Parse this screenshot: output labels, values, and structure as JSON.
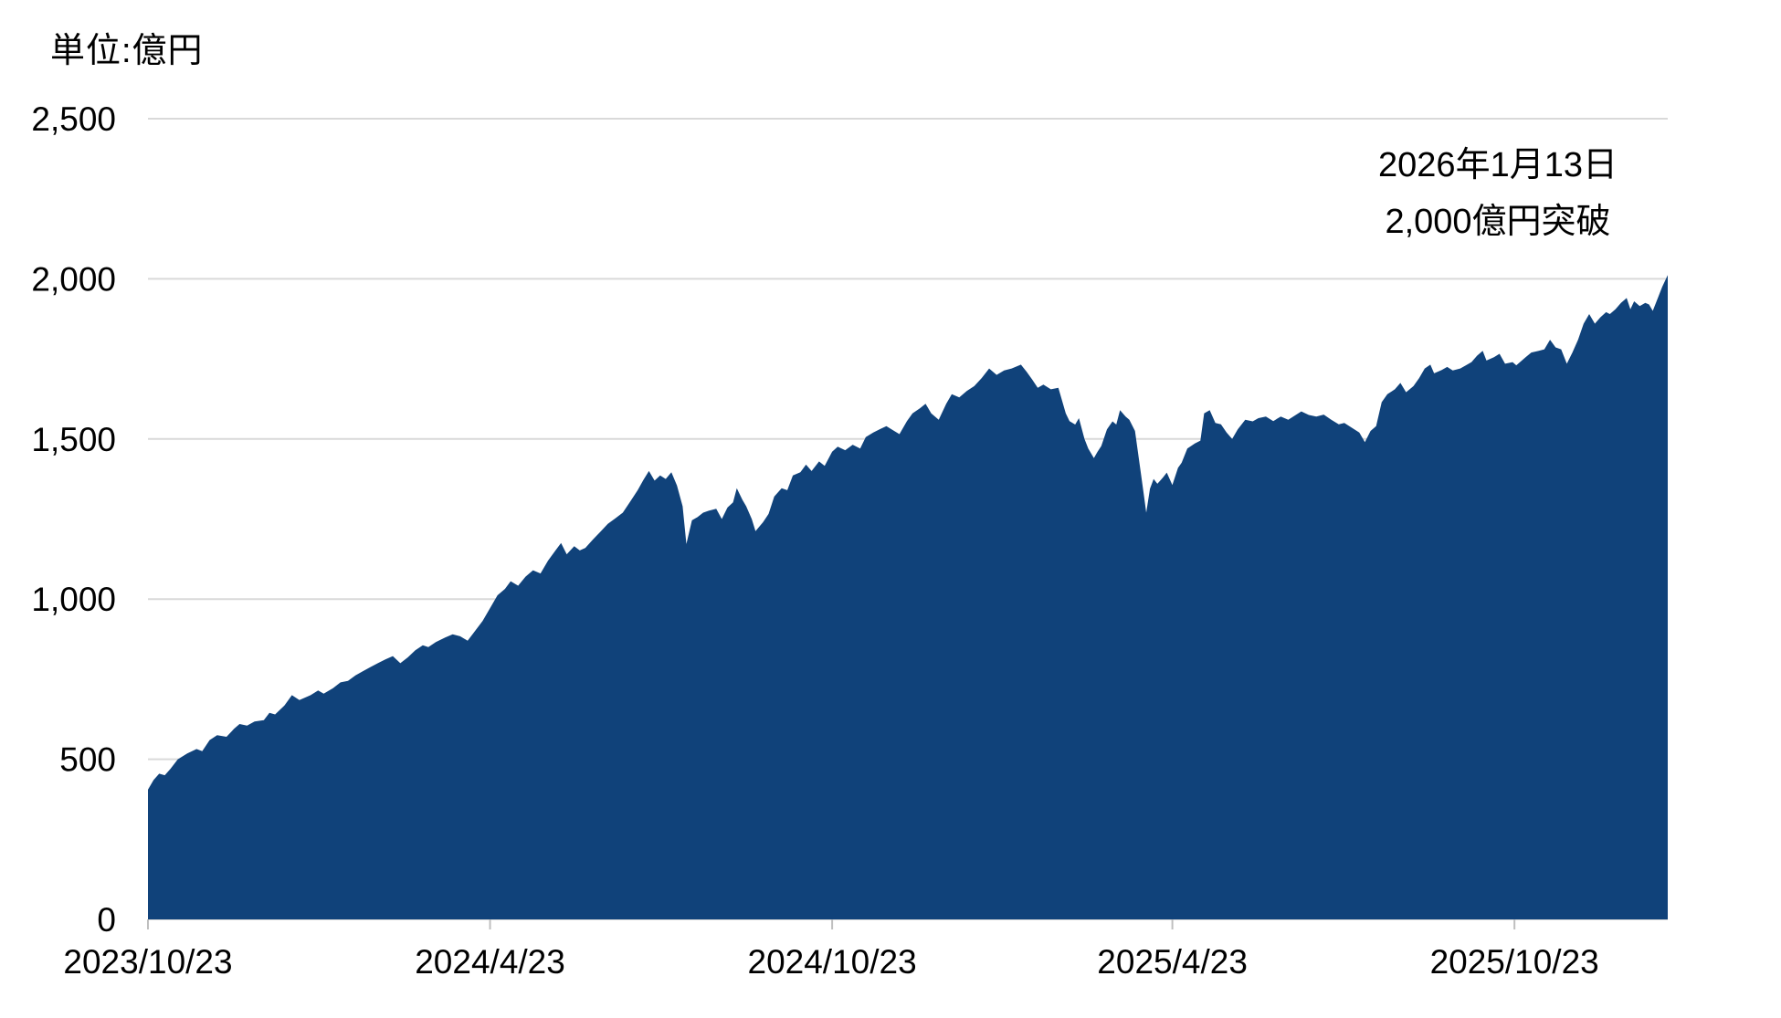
{
  "header": {
    "unit_label": "単位:億円"
  },
  "annotation": {
    "line1": "2026年1月13日",
    "line2": "2,000億円突破"
  },
  "colors": {
    "area_fill": "#10427A",
    "gridline": "#D9D9D9",
    "axis_tick": "#BFBFBF",
    "text": "#000000",
    "background": "#FFFFFF"
  },
  "chart_data": {
    "type": "area",
    "title": "単位:億円",
    "unit_label": "単位:億円",
    "annotation_lines": [
      "2026年1月13日",
      "2,000億円突破"
    ],
    "grid": "horizontal-only",
    "legend": "none",
    "y_axis": {
      "ticks": [
        0,
        500,
        1000,
        1500,
        2000,
        2500
      ],
      "tick_labels": [
        "0",
        "500",
        "1,000",
        "1,500",
        "2,000",
        "2,500"
      ],
      "ylim": [
        0,
        2500
      ]
    },
    "x_axis": {
      "tick_labels": [
        "2023/10/23",
        "2024/4/23",
        "2024/10/23",
        "2025/4/23",
        "2025/10/23"
      ],
      "tick_days": [
        0,
        183,
        366,
        548,
        731
      ],
      "total_days": 813,
      "end_date_label": "2026年1月13日"
    },
    "final_value": 2012,
    "points": [
      [
        0,
        405
      ],
      [
        3,
        435
      ],
      [
        6,
        455
      ],
      [
        9,
        450
      ],
      [
        12,
        470
      ],
      [
        16,
        500
      ],
      [
        21,
        518
      ],
      [
        26,
        532
      ],
      [
        29,
        525
      ],
      [
        33,
        560
      ],
      [
        37,
        575
      ],
      [
        42,
        570
      ],
      [
        46,
        595
      ],
      [
        49,
        610
      ],
      [
        53,
        605
      ],
      [
        57,
        618
      ],
      [
        62,
        622
      ],
      [
        65,
        645
      ],
      [
        68,
        640
      ],
      [
        73,
        668
      ],
      [
        77,
        700
      ],
      [
        81,
        685
      ],
      [
        87,
        700
      ],
      [
        91,
        715
      ],
      [
        94,
        705
      ],
      [
        99,
        722
      ],
      [
        103,
        740
      ],
      [
        107,
        745
      ],
      [
        111,
        762
      ],
      [
        115,
        775
      ],
      [
        119,
        788
      ],
      [
        123,
        800
      ],
      [
        127,
        812
      ],
      [
        131,
        822
      ],
      [
        135,
        800
      ],
      [
        139,
        818
      ],
      [
        143,
        840
      ],
      [
        147,
        856
      ],
      [
        150,
        850
      ],
      [
        154,
        866
      ],
      [
        159,
        880
      ],
      [
        163,
        890
      ],
      [
        167,
        884
      ],
      [
        171,
        870
      ],
      [
        174,
        893
      ],
      [
        179,
        932
      ],
      [
        183,
        972
      ],
      [
        187,
        1012
      ],
      [
        191,
        1032
      ],
      [
        194,
        1056
      ],
      [
        198,
        1042
      ],
      [
        202,
        1070
      ],
      [
        206,
        1090
      ],
      [
        210,
        1080
      ],
      [
        214,
        1120
      ],
      [
        218,
        1152
      ],
      [
        221,
        1175
      ],
      [
        224,
        1140
      ],
      [
        228,
        1165
      ],
      [
        231,
        1152
      ],
      [
        234,
        1160
      ],
      [
        238,
        1186
      ],
      [
        242,
        1210
      ],
      [
        246,
        1235
      ],
      [
        250,
        1252
      ],
      [
        254,
        1270
      ],
      [
        258,
        1305
      ],
      [
        262,
        1340
      ],
      [
        265,
        1372
      ],
      [
        268,
        1400
      ],
      [
        271,
        1370
      ],
      [
        274,
        1386
      ],
      [
        277,
        1375
      ],
      [
        280,
        1396
      ],
      [
        283,
        1355
      ],
      [
        286,
        1290
      ],
      [
        288,
        1172
      ],
      [
        291,
        1246
      ],
      [
        294,
        1256
      ],
      [
        297,
        1270
      ],
      [
        300,
        1276
      ],
      [
        304,
        1282
      ],
      [
        307,
        1250
      ],
      [
        310,
        1286
      ],
      [
        313,
        1302
      ],
      [
        315,
        1346
      ],
      [
        318,
        1310
      ],
      [
        320,
        1290
      ],
      [
        323,
        1250
      ],
      [
        325,
        1212
      ],
      [
        329,
        1240
      ],
      [
        332,
        1266
      ],
      [
        335,
        1320
      ],
      [
        339,
        1346
      ],
      [
        342,
        1340
      ],
      [
        345,
        1386
      ],
      [
        349,
        1396
      ],
      [
        352,
        1420
      ],
      [
        355,
        1400
      ],
      [
        359,
        1430
      ],
      [
        362,
        1416
      ],
      [
        366,
        1460
      ],
      [
        369,
        1476
      ],
      [
        373,
        1465
      ],
      [
        377,
        1482
      ],
      [
        381,
        1470
      ],
      [
        384,
        1506
      ],
      [
        388,
        1520
      ],
      [
        392,
        1532
      ],
      [
        395,
        1540
      ],
      [
        399,
        1526
      ],
      [
        402,
        1515
      ],
      [
        406,
        1556
      ],
      [
        409,
        1580
      ],
      [
        413,
        1596
      ],
      [
        416,
        1610
      ],
      [
        419,
        1580
      ],
      [
        423,
        1560
      ],
      [
        427,
        1610
      ],
      [
        430,
        1640
      ],
      [
        434,
        1630
      ],
      [
        438,
        1650
      ],
      [
        442,
        1665
      ],
      [
        446,
        1690
      ],
      [
        450,
        1720
      ],
      [
        454,
        1700
      ],
      [
        458,
        1714
      ],
      [
        462,
        1720
      ],
      [
        467,
        1732
      ],
      [
        470,
        1710
      ],
      [
        473,
        1686
      ],
      [
        476,
        1660
      ],
      [
        479,
        1670
      ],
      [
        483,
        1655
      ],
      [
        487,
        1660
      ],
      [
        491,
        1580
      ],
      [
        493,
        1556
      ],
      [
        496,
        1545
      ],
      [
        498,
        1565
      ],
      [
        501,
        1500
      ],
      [
        503,
        1470
      ],
      [
        506,
        1440
      ],
      [
        508,
        1460
      ],
      [
        510,
        1478
      ],
      [
        513,
        1530
      ],
      [
        516,
        1555
      ],
      [
        518,
        1545
      ],
      [
        520,
        1590
      ],
      [
        523,
        1570
      ],
      [
        525,
        1560
      ],
      [
        528,
        1525
      ],
      [
        531,
        1400
      ],
      [
        533,
        1315
      ],
      [
        534,
        1270
      ],
      [
        536,
        1345
      ],
      [
        538,
        1375
      ],
      [
        540,
        1360
      ],
      [
        543,
        1380
      ],
      [
        545,
        1395
      ],
      [
        548,
        1356
      ],
      [
        551,
        1410
      ],
      [
        553,
        1426
      ],
      [
        556,
        1470
      ],
      [
        560,
        1486
      ],
      [
        563,
        1495
      ],
      [
        565,
        1580
      ],
      [
        568,
        1590
      ],
      [
        571,
        1550
      ],
      [
        574,
        1546
      ],
      [
        577,
        1520
      ],
      [
        580,
        1500
      ],
      [
        583,
        1530
      ],
      [
        587,
        1560
      ],
      [
        591,
        1555
      ],
      [
        594,
        1565
      ],
      [
        598,
        1570
      ],
      [
        602,
        1556
      ],
      [
        606,
        1570
      ],
      [
        610,
        1560
      ],
      [
        614,
        1575
      ],
      [
        617,
        1586
      ],
      [
        621,
        1575
      ],
      [
        625,
        1570
      ],
      [
        629,
        1576
      ],
      [
        633,
        1560
      ],
      [
        637,
        1546
      ],
      [
        640,
        1550
      ],
      [
        644,
        1535
      ],
      [
        648,
        1520
      ],
      [
        651,
        1490
      ],
      [
        654,
        1525
      ],
      [
        657,
        1540
      ],
      [
        660,
        1615
      ],
      [
        663,
        1640
      ],
      [
        667,
        1655
      ],
      [
        670,
        1675
      ],
      [
        673,
        1646
      ],
      [
        677,
        1665
      ],
      [
        680,
        1690
      ],
      [
        683,
        1720
      ],
      [
        686,
        1732
      ],
      [
        688,
        1705
      ],
      [
        692,
        1715
      ],
      [
        695,
        1725
      ],
      [
        698,
        1714
      ],
      [
        702,
        1720
      ],
      [
        705,
        1730
      ],
      [
        708,
        1740
      ],
      [
        711,
        1760
      ],
      [
        714,
        1775
      ],
      [
        716,
        1745
      ],
      [
        720,
        1755
      ],
      [
        723,
        1766
      ],
      [
        726,
        1735
      ],
      [
        730,
        1740
      ],
      [
        732,
        1730
      ],
      [
        737,
        1755
      ],
      [
        740,
        1770
      ],
      [
        744,
        1775
      ],
      [
        747,
        1780
      ],
      [
        750,
        1810
      ],
      [
        753,
        1786
      ],
      [
        756,
        1780
      ],
      [
        759,
        1735
      ],
      [
        762,
        1770
      ],
      [
        765,
        1810
      ],
      [
        768,
        1860
      ],
      [
        771,
        1890
      ],
      [
        774,
        1860
      ],
      [
        777,
        1880
      ],
      [
        780,
        1896
      ],
      [
        782,
        1890
      ],
      [
        785,
        1905
      ],
      [
        788,
        1925
      ],
      [
        791,
        1940
      ],
      [
        793,
        1905
      ],
      [
        795,
        1930
      ],
      [
        798,
        1915
      ],
      [
        801,
        1925
      ],
      [
        803,
        1920
      ],
      [
        805,
        1900
      ],
      [
        808,
        1945
      ],
      [
        810,
        1975
      ],
      [
        813,
        2012
      ]
    ]
  }
}
